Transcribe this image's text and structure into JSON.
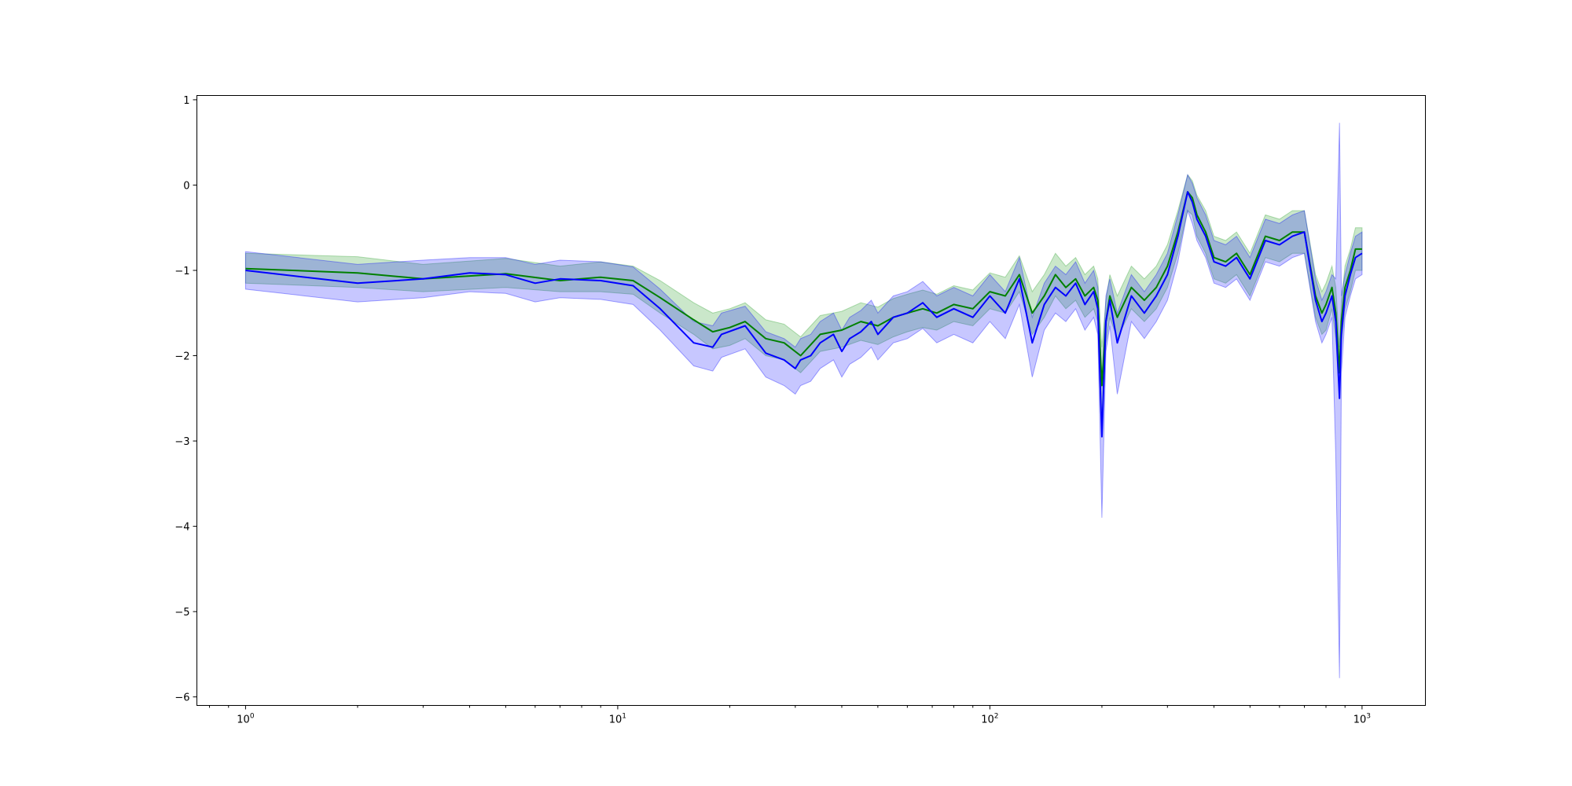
{
  "chart_data": {
    "type": "line",
    "title": "",
    "xlabel": "",
    "ylabel": "",
    "x_scale": "log",
    "xlim": [
      0.74,
      1480
    ],
    "ylim": [
      -6.1,
      1.05
    ],
    "grid": false,
    "x_ticks": [
      {
        "value": 1,
        "base": "10",
        "exp": "0"
      },
      {
        "value": 10,
        "base": "10",
        "exp": "1"
      },
      {
        "value": 100,
        "base": "10",
        "exp": "2"
      },
      {
        "value": 1000,
        "base": "10",
        "exp": "3"
      }
    ],
    "y_ticks": [
      {
        "value": 1,
        "label": "1"
      },
      {
        "value": 0,
        "label": "0"
      },
      {
        "value": -1,
        "label": "−1"
      },
      {
        "value": -2,
        "label": "−2"
      },
      {
        "value": -3,
        "label": "−3"
      },
      {
        "value": -4,
        "label": "−4"
      },
      {
        "value": -5,
        "label": "−5"
      },
      {
        "value": -6,
        "label": "−6"
      }
    ],
    "series": [
      {
        "color": "#008000",
        "band_color": "#2ca02c",
        "band_opacity": 0.25,
        "x": [
          1,
          2,
          3,
          5,
          7,
          9,
          11,
          13,
          16,
          18,
          20,
          22,
          25,
          28,
          31,
          35,
          40,
          45,
          50,
          55,
          60,
          66,
          72,
          80,
          90,
          100,
          110,
          120,
          130,
          140,
          150,
          160,
          170,
          180,
          190,
          195,
          200,
          205,
          210,
          220,
          240,
          260,
          280,
          300,
          320,
          340,
          350,
          360,
          380,
          400,
          430,
          460,
          500,
          550,
          600,
          650,
          700,
          750,
          780,
          800,
          830,
          850,
          870,
          880,
          900,
          930,
          960,
          1000
        ],
        "values": [
          -0.98,
          -1.03,
          -1.1,
          -1.04,
          -1.12,
          -1.08,
          -1.12,
          -1.32,
          -1.58,
          -1.72,
          -1.67,
          -1.6,
          -1.8,
          -1.85,
          -2.0,
          -1.75,
          -1.7,
          -1.6,
          -1.65,
          -1.55,
          -1.5,
          -1.45,
          -1.5,
          -1.4,
          -1.45,
          -1.25,
          -1.3,
          -1.05,
          -1.5,
          -1.3,
          -1.05,
          -1.2,
          -1.1,
          -1.3,
          -1.2,
          -1.35,
          -2.35,
          -1.6,
          -1.3,
          -1.55,
          -1.2,
          -1.35,
          -1.2,
          -0.95,
          -0.55,
          -0.08,
          -0.15,
          -0.35,
          -0.55,
          -0.85,
          -0.9,
          -0.8,
          -1.05,
          -0.6,
          -0.65,
          -0.55,
          -0.55,
          -1.3,
          -1.5,
          -1.4,
          -1.2,
          -1.5,
          -2.2,
          -1.6,
          -1.2,
          -1.0,
          -0.75,
          -0.75
        ],
        "lower": [
          -1.15,
          -1.2,
          -1.25,
          -1.2,
          -1.25,
          -1.25,
          -1.28,
          -1.5,
          -1.75,
          -1.92,
          -1.88,
          -1.8,
          -2.0,
          -2.05,
          -2.2,
          -1.95,
          -1.9,
          -1.82,
          -1.87,
          -1.78,
          -1.72,
          -1.67,
          -1.7,
          -1.6,
          -1.65,
          -1.45,
          -1.5,
          -1.25,
          -1.75,
          -1.55,
          -1.3,
          -1.45,
          -1.35,
          -1.55,
          -1.45,
          -1.6,
          -2.8,
          -1.85,
          -1.55,
          -1.8,
          -1.45,
          -1.6,
          -1.45,
          -1.2,
          -0.8,
          -0.3,
          -0.35,
          -0.6,
          -0.8,
          -1.1,
          -1.15,
          -1.05,
          -1.3,
          -0.85,
          -0.9,
          -0.8,
          -0.8,
          -1.55,
          -1.75,
          -1.7,
          -1.45,
          -1.8,
          -2.5,
          -1.85,
          -1.45,
          -1.25,
          -1.0,
          -1.0
        ],
        "upper": [
          -0.8,
          -0.84,
          -0.93,
          -0.86,
          -0.95,
          -0.9,
          -0.95,
          -1.12,
          -1.38,
          -1.5,
          -1.45,
          -1.38,
          -1.58,
          -1.63,
          -1.78,
          -1.53,
          -1.48,
          -1.38,
          -1.43,
          -1.33,
          -1.28,
          -1.23,
          -1.28,
          -1.18,
          -1.23,
          -1.03,
          -1.08,
          -0.83,
          -1.25,
          -1.05,
          -0.8,
          -0.95,
          -0.85,
          -1.05,
          -0.95,
          -1.1,
          -1.9,
          -1.35,
          -1.05,
          -1.3,
          -0.95,
          -1.1,
          -0.95,
          -0.7,
          -0.3,
          0.12,
          0.05,
          -0.12,
          -0.3,
          -0.6,
          -0.65,
          -0.55,
          -0.8,
          -0.35,
          -0.4,
          -0.3,
          -0.3,
          -1.05,
          -1.25,
          -1.15,
          -0.95,
          -1.2,
          -1.9,
          -1.35,
          -0.95,
          -0.75,
          -0.5,
          -0.5
        ]
      },
      {
        "color": "#0000ff",
        "band_color": "#0000ff",
        "band_opacity": 0.22,
        "x": [
          1,
          2,
          3,
          4,
          5,
          6,
          7,
          9,
          11,
          13,
          16,
          18,
          19,
          22,
          25,
          28,
          30,
          31,
          33,
          35,
          38,
          40,
          42,
          45,
          48,
          50,
          55,
          60,
          66,
          72,
          80,
          90,
          100,
          110,
          120,
          130,
          140,
          150,
          160,
          170,
          180,
          190,
          195,
          200,
          205,
          210,
          220,
          240,
          260,
          280,
          300,
          320,
          340,
          350,
          360,
          380,
          400,
          430,
          460,
          500,
          550,
          600,
          650,
          700,
          750,
          780,
          800,
          830,
          850,
          870,
          880,
          900,
          930,
          960,
          1000
        ],
        "values": [
          -1.0,
          -1.15,
          -1.1,
          -1.03,
          -1.05,
          -1.15,
          -1.1,
          -1.12,
          -1.18,
          -1.45,
          -1.85,
          -1.9,
          -1.75,
          -1.65,
          -1.97,
          -2.05,
          -2.15,
          -2.05,
          -2.0,
          -1.85,
          -1.75,
          -1.95,
          -1.8,
          -1.72,
          -1.6,
          -1.75,
          -1.55,
          -1.5,
          -1.38,
          -1.55,
          -1.45,
          -1.55,
          -1.3,
          -1.5,
          -1.1,
          -1.85,
          -1.4,
          -1.2,
          -1.3,
          -1.15,
          -1.4,
          -1.25,
          -1.45,
          -2.95,
          -1.6,
          -1.35,
          -1.85,
          -1.3,
          -1.5,
          -1.3,
          -1.05,
          -0.6,
          -0.08,
          -0.2,
          -0.4,
          -0.6,
          -0.9,
          -0.95,
          -0.85,
          -1.1,
          -0.65,
          -0.7,
          -0.6,
          -0.55,
          -1.35,
          -1.6,
          -1.5,
          -1.3,
          -1.6,
          -2.5,
          -1.75,
          -1.3,
          -1.05,
          -0.85,
          -0.8
        ],
        "lower": [
          -1.22,
          -1.37,
          -1.32,
          -1.25,
          -1.27,
          -1.37,
          -1.32,
          -1.34,
          -1.4,
          -1.7,
          -2.12,
          -2.18,
          -2.02,
          -1.92,
          -2.25,
          -2.35,
          -2.45,
          -2.35,
          -2.3,
          -2.15,
          -2.05,
          -2.25,
          -2.1,
          -2.02,
          -1.9,
          -2.05,
          -1.85,
          -1.8,
          -1.68,
          -1.85,
          -1.75,
          -1.85,
          -1.6,
          -1.8,
          -1.4,
          -2.25,
          -1.7,
          -1.5,
          -1.6,
          -1.45,
          -1.7,
          -1.55,
          -1.75,
          -3.9,
          -1.95,
          -1.65,
          -2.45,
          -1.6,
          -1.8,
          -1.6,
          -1.35,
          -0.9,
          -0.3,
          -0.45,
          -0.65,
          -0.85,
          -1.15,
          -1.2,
          -1.1,
          -1.35,
          -0.9,
          -0.95,
          -0.85,
          -0.8,
          -1.6,
          -1.85,
          -1.75,
          -1.55,
          -3.2,
          -5.78,
          -2.2,
          -1.55,
          -1.3,
          -1.1,
          -1.05
        ],
        "upper": [
          -0.78,
          -0.93,
          -0.88,
          -0.85,
          -0.85,
          -0.93,
          -0.88,
          -0.9,
          -0.96,
          -1.22,
          -1.6,
          -1.65,
          -1.5,
          -1.42,
          -1.72,
          -1.8,
          -1.9,
          -1.8,
          -1.75,
          -1.6,
          -1.5,
          -1.7,
          -1.55,
          -1.47,
          -1.35,
          -1.5,
          -1.3,
          -1.25,
          -1.13,
          -1.3,
          -1.2,
          -1.3,
          -1.05,
          -1.25,
          -0.85,
          -1.55,
          -1.15,
          -0.95,
          -1.05,
          -0.9,
          -1.15,
          -1.0,
          -1.2,
          -2.3,
          -1.3,
          -1.1,
          -1.5,
          -1.05,
          -1.25,
          -1.05,
          -0.8,
          -0.35,
          0.12,
          0.02,
          -0.15,
          -0.35,
          -0.65,
          -0.7,
          -0.6,
          -0.85,
          -0.4,
          -0.45,
          -0.35,
          -0.3,
          -1.1,
          -1.35,
          -1.25,
          -1.05,
          -1.1,
          0.73,
          -1.3,
          -1.05,
          -0.8,
          -0.6,
          -0.55
        ]
      }
    ]
  }
}
